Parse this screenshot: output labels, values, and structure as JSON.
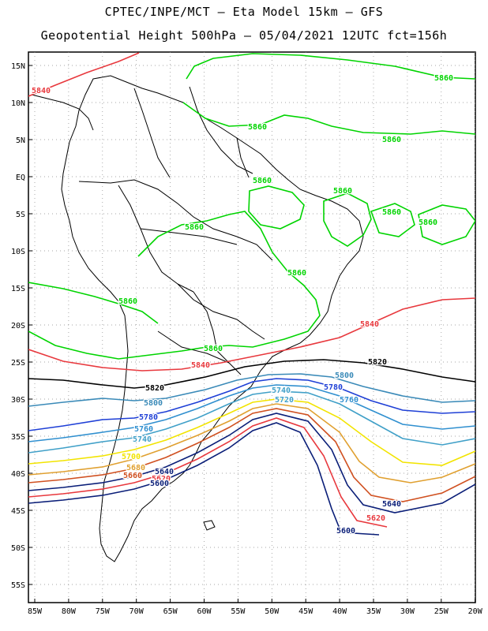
{
  "header": {
    "line1": "CPTEC/INPE/MCT –  Eta Model 15km – GFS",
    "line2": "Geopotential Height 500hPa – 05/04/2021 12UTC fct=156h"
  },
  "axes": {
    "lat_labels": [
      "15N",
      "10N",
      "5N",
      "EQ",
      "5S",
      "10S",
      "15S",
      "20S",
      "25S",
      "30S",
      "35S",
      "40S",
      "45S",
      "50S",
      "55S"
    ],
    "lon_labels": [
      "85W",
      "80W",
      "75W",
      "70W",
      "65W",
      "60W",
      "55W",
      "50W",
      "45W",
      "40W",
      "35W",
      "30W",
      "25W",
      "20W"
    ]
  },
  "contour_colors": {
    "5880": "#00d400",
    "5860": "#00d400",
    "5840": "#e8383d",
    "5820": "#000000",
    "5800": "#3a8ab8",
    "5780": "#1e3fd6",
    "5760": "#2f8fcf",
    "5740": "#40a0c8",
    "5700": "#f2e400",
    "5680": "#e0a030",
    "5660": "#d05020",
    "5640": "#0a1e78",
    "5620": "#e8383d",
    "5600": "#0a1e78"
  },
  "contour_labels": [
    {
      "text": "5840",
      "color": "5840"
    },
    {
      "text": "5860",
      "color": "5860"
    },
    {
      "text": "5860",
      "color": "5860"
    },
    {
      "text": "5860",
      "color": "5860"
    },
    {
      "text": "5860",
      "color": "5860"
    },
    {
      "text": "5860",
      "color": "5860"
    },
    {
      "text": "5860",
      "color": "5860"
    },
    {
      "text": "5860",
      "color": "5860"
    },
    {
      "text": "5860",
      "color": "5860"
    },
    {
      "text": "5860",
      "color": "5860"
    },
    {
      "text": "5860",
      "color": "5860"
    },
    {
      "text": "5860",
      "color": "5860"
    },
    {
      "text": "5840",
      "color": "5840"
    },
    {
      "text": "5840",
      "color": "5840"
    },
    {
      "text": "5820",
      "color": "5820"
    },
    {
      "text": "5820",
      "color": "5820"
    },
    {
      "text": "5800",
      "color": "5800"
    },
    {
      "text": "5800",
      "color": "5800"
    },
    {
      "text": "5780",
      "color": "5780"
    },
    {
      "text": "5780",
      "color": "5780"
    },
    {
      "text": "5760",
      "color": "5760"
    },
    {
      "text": "5760",
      "color": "5760"
    },
    {
      "text": "5740",
      "color": "5740"
    },
    {
      "text": "5740",
      "color": "5740"
    },
    {
      "text": "5720",
      "color": "5740"
    },
    {
      "text": "5700",
      "color": "5700"
    },
    {
      "text": "5680",
      "color": "5680"
    },
    {
      "text": "5660",
      "color": "5660"
    },
    {
      "text": "5640",
      "color": "5640"
    },
    {
      "text": "5620",
      "color": "5620"
    },
    {
      "text": "5600",
      "color": "5600"
    },
    {
      "text": "5640",
      "color": "5640"
    },
    {
      "text": "5620",
      "color": "5620"
    },
    {
      "text": "5600",
      "color": "5600"
    }
  ]
}
